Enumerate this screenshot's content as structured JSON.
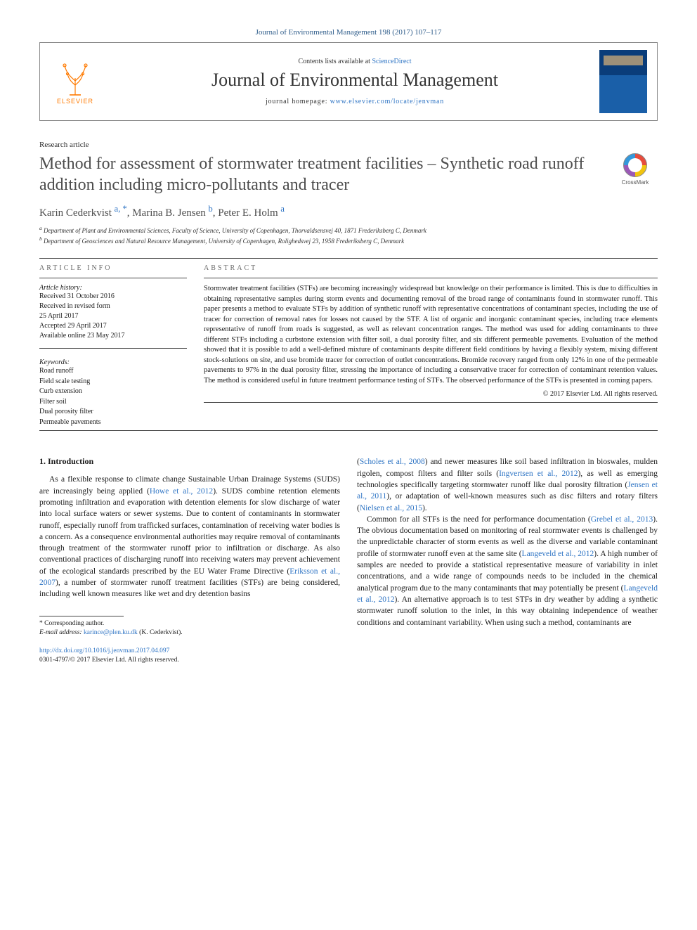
{
  "journal_ref": "Journal of Environmental Management 198 (2017) 107–117",
  "masthead": {
    "publisher_name": "ELSEVIER",
    "contents_prefix": "Contents lists available at ",
    "contents_link": "ScienceDirect",
    "journal_name": "Journal of Environmental Management",
    "homepage_prefix": "journal homepage: ",
    "homepage_url": "www.elsevier.com/locate/jenvman"
  },
  "article_type": "Research article",
  "title": "Method for assessment of stormwater treatment facilities – Synthetic road runoff addition including micro-pollutants and tracer",
  "crossmark_label": "CrossMark",
  "authors_html": "Karin Cederkvist <a href='#'><sup>a, *</sup></a>, Marina B. Jensen <a href='#'><sup>b</sup></a>, Peter E. Holm <a href='#'><sup>a</sup></a>",
  "affiliations": [
    "a Department of Plant and Environmental Sciences, Faculty of Science, University of Copenhagen, Thorvaldsensvej 40, 1871 Frederiksberg C, Denmark",
    "b Department of Geosciences and Natural Resource Management, University of Copenhagen, Rolighedsvej 23, 1958 Frederiksberg C, Denmark"
  ],
  "article_info_head": "ARTICLE INFO",
  "abstract_head": "ABSTRACT",
  "history": {
    "head": "Article history:",
    "lines": [
      "Received 31 October 2016",
      "Received in revised form",
      "25 April 2017",
      "Accepted 29 April 2017",
      "Available online 23 May 2017"
    ]
  },
  "keywords": {
    "head": "Keywords:",
    "items": [
      "Road runoff",
      "Field scale testing",
      "Curb extension",
      "Filter soil",
      "Dual porosity filter",
      "Permeable pavements"
    ]
  },
  "abstract": "Stormwater treatment facilities (STFs) are becoming increasingly widespread but knowledge on their performance is limited. This is due to difficulties in obtaining representative samples during storm events and documenting removal of the broad range of contaminants found in stormwater runoff. This paper presents a method to evaluate STFs by addition of synthetic runoff with representative concentrations of contaminant species, including the use of tracer for correction of removal rates for losses not caused by the STF. A list of organic and inorganic contaminant species, including trace elements representative of runoff from roads is suggested, as well as relevant concentration ranges. The method was used for adding contaminants to three different STFs including a curbstone extension with filter soil, a dual porosity filter, and six different permeable pavements. Evaluation of the method showed that it is possible to add a well-defined mixture of contaminants despite different field conditions by having a flexibly system, mixing different stock-solutions on site, and use bromide tracer for correction of outlet concentrations. Bromide recovery ranged from only 12% in one of the permeable pavements to 97% in the dual porosity filter, stressing the importance of including a conservative tracer for correction of contaminant retention values. The method is considered useful in future treatment performance testing of STFs. The observed performance of the STFs is presented in coming papers.",
  "abs_copyright": "© 2017 Elsevier Ltd. All rights reserved.",
  "intro_head": "1. Introduction",
  "intro_col1": "As a flexible response to climate change Sustainable Urban Drainage Systems (SUDS) are increasingly being applied (<a href='#'>Howe et al., 2012</a>). SUDS combine retention elements promoting infiltration and evaporation with detention elements for slow discharge of water into local surface waters or sewer systems. Due to content of contaminants in stormwater runoff, especially runoff from trafficked surfaces, contamination of receiving water bodies is a concern. As a consequence environmental authorities may require removal of contaminants through treatment of the stormwater runoff prior to infiltration or discharge. As also conventional practices of discharging runoff into receiving waters may prevent achievement of the ecological standards prescribed by the EU Water Frame Directive (<a href='#'>Eriksson et al., 2007</a>), a number of stormwater runoff treatment facilities (STFs) are being considered, including well known measures like wet and dry detention basins",
  "intro_col2_p1": "(<a href='#'>Scholes et al., 2008</a>) and newer measures like soil based infiltration in bioswales, mulden rigolen, compost filters and filter soils (<a href='#'>Ingvertsen et al., 2012</a>), as well as emerging technologies specifically targeting stormwater runoff like dual porosity filtration (<a href='#'>Jensen et al., 2011</a>), or adaptation of well-known measures such as disc filters and rotary filters (<a href='#'>Nielsen et al., 2015</a>).",
  "intro_col2_p2": "Common for all STFs is the need for performance documentation (<a href='#'>Grebel et al., 2013</a>). The obvious documentation based on monitoring of real stormwater events is challenged by the unpredictable character of storm events as well as the diverse and variable contaminant profile of stormwater runoff even at the same site (<a href='#'>Langeveld et al., 2012</a>). A high number of samples are needed to provide a statistical representative measure of variability in inlet concentrations, and a wide range of compounds needs to be included in the chemical analytical program due to the many contaminants that may potentially be present (<a href='#'>Langeveld et al., 2012</a>). An alternative approach is to test STFs in dry weather by adding a synthetic stormwater runoff solution to the inlet, in this way obtaining independence of weather conditions and contaminant variability. When using such a method, contaminants are",
  "footnote": {
    "star": "* Corresponding author.",
    "email_label": "E-mail address: ",
    "email": "karince@plen.ku.dk",
    "email_person": " (K. Cederkvist)."
  },
  "footer": {
    "doi": "http://dx.doi.org/10.1016/j.jenvman.2017.04.097",
    "issn_line": "0301-4797/© 2017 Elsevier Ltd. All rights reserved."
  },
  "colors": {
    "link": "#2e74c4",
    "elsevier_orange": "#ff7a00",
    "title_gray": "#4d4d4d"
  }
}
